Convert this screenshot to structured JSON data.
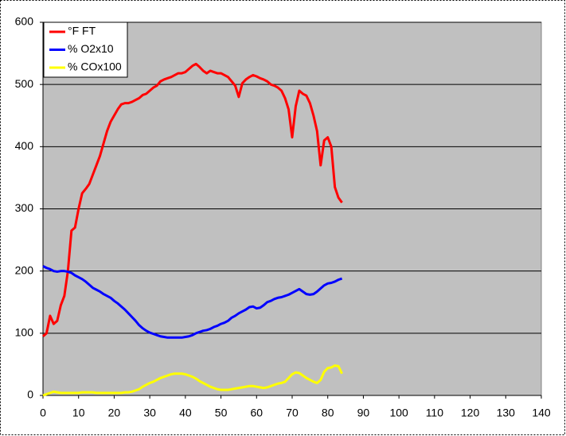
{
  "chart_data": {
    "type": "line",
    "x": [
      0,
      1,
      2,
      3,
      4,
      5,
      6,
      7,
      8,
      9,
      10,
      11,
      12,
      13,
      14,
      15,
      16,
      17,
      18,
      19,
      20,
      21,
      22,
      23,
      24,
      25,
      26,
      27,
      28,
      29,
      30,
      31,
      32,
      33,
      34,
      35,
      36,
      37,
      38,
      39,
      40,
      41,
      42,
      43,
      44,
      45,
      46,
      47,
      48,
      49,
      50,
      51,
      52,
      53,
      54,
      55,
      56,
      57,
      58,
      59,
      60,
      61,
      62,
      63,
      64,
      65,
      66,
      67,
      68,
      69,
      70,
      71,
      72,
      73,
      74,
      75,
      76,
      77,
      78,
      79,
      80,
      81,
      82,
      83,
      84
    ],
    "series": [
      {
        "name": "°F FT",
        "color": "#ff0000",
        "values": [
          95,
          100,
          128,
          115,
          120,
          145,
          160,
          200,
          265,
          270,
          300,
          325,
          332,
          340,
          355,
          370,
          385,
          405,
          425,
          440,
          450,
          460,
          468,
          470,
          470,
          472,
          475,
          478,
          483,
          485,
          490,
          495,
          498,
          505,
          508,
          510,
          512,
          515,
          518,
          518,
          520,
          525,
          530,
          533,
          528,
          522,
          518,
          522,
          520,
          518,
          518,
          515,
          512,
          505,
          498,
          480,
          502,
          508,
          512,
          515,
          513,
          510,
          508,
          505,
          500,
          498,
          495,
          490,
          478,
          460,
          415,
          465,
          490,
          485,
          482,
          470,
          450,
          425,
          370,
          410,
          415,
          400,
          335,
          318,
          310
        ]
      },
      {
        "name": "% O2x10",
        "color": "#0000ff",
        "values": [
          208,
          205,
          203,
          200,
          199,
          200,
          200,
          199,
          197,
          193,
          190,
          187,
          183,
          178,
          173,
          170,
          167,
          163,
          160,
          157,
          152,
          148,
          143,
          138,
          132,
          126,
          120,
          113,
          108,
          104,
          101,
          99,
          97,
          95,
          94,
          93,
          93,
          93,
          93,
          93,
          94,
          95,
          97,
          100,
          102,
          104,
          105,
          107,
          110,
          112,
          115,
          117,
          120,
          125,
          128,
          132,
          135,
          138,
          142,
          143,
          140,
          141,
          145,
          150,
          152,
          155,
          157,
          158,
          160,
          162,
          165,
          168,
          171,
          167,
          163,
          162,
          163,
          167,
          172,
          177,
          180,
          181,
          183,
          186,
          188
        ]
      },
      {
        "name": "% COx100",
        "color": "#ffff00",
        "values": [
          0,
          2,
          4,
          6,
          5,
          4,
          4,
          4,
          4,
          4,
          4,
          5,
          5,
          5,
          5,
          4,
          4,
          4,
          4,
          4,
          4,
          4,
          4,
          5,
          5,
          6,
          8,
          10,
          14,
          17,
          20,
          22,
          25,
          28,
          30,
          32,
          34,
          35,
          35,
          35,
          34,
          32,
          30,
          27,
          23,
          20,
          17,
          14,
          12,
          10,
          9,
          9,
          9,
          10,
          11,
          12,
          13,
          14,
          15,
          15,
          14,
          13,
          12,
          13,
          15,
          17,
          19,
          20,
          22,
          28,
          34,
          37,
          36,
          32,
          28,
          25,
          22,
          20,
          25,
          38,
          44,
          45,
          48,
          47,
          35
        ]
      }
    ],
    "xlim": [
      0,
      140
    ],
    "xticks": [
      0,
      10,
      20,
      30,
      40,
      50,
      60,
      70,
      80,
      90,
      100,
      110,
      120,
      130,
      140
    ],
    "ylim": [
      0,
      600
    ],
    "yticks": [
      0,
      100,
      200,
      300,
      400,
      500,
      600
    ],
    "grid": true,
    "legend": "top-left"
  }
}
